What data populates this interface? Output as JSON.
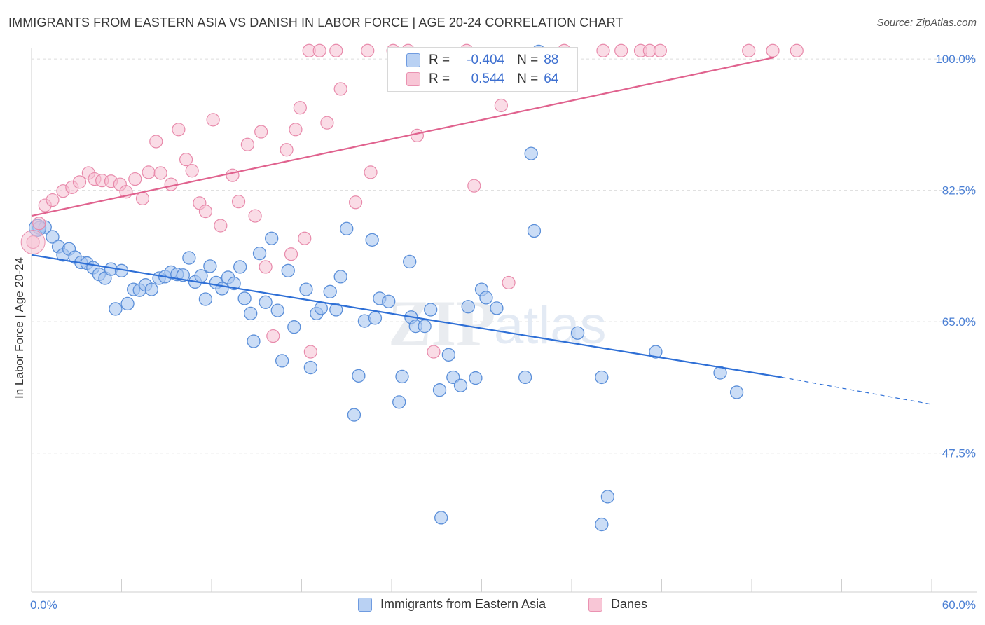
{
  "title": "IMMIGRANTS FROM EASTERN ASIA VS DANISH IN LABOR FORCE | AGE 20-24 CORRELATION CHART",
  "source": "Source: ZipAtlas.com",
  "watermark": {
    "zip": "ZIP",
    "atlas": "atlas"
  },
  "legend": {
    "rows": [
      {
        "r_label": "R =",
        "r_value": "-0.404",
        "n_label": "N =",
        "n_value": "88"
      },
      {
        "r_label": "R =",
        "r_value": "0.544",
        "n_label": "N =",
        "n_value": "64"
      }
    ]
  },
  "bottom_legend": {
    "series_a": "Immigrants from Eastern Asia",
    "series_b": "Danes"
  },
  "colors": {
    "blue_fill": "#a9c6f0",
    "blue_stroke": "#5b8fd9",
    "blue_line": "#2e6fd6",
    "pink_fill": "#f6bfd1",
    "pink_stroke": "#e88aab",
    "pink_line": "#e0628e",
    "tick_text": "#4a7fd4",
    "grid": "#dcdcdc"
  },
  "chart_data": {
    "type": "scatter",
    "title": "IMMIGRANTS FROM EASTERN ASIA VS DANISH IN LABOR FORCE | AGE 20-24 CORRELATION CHART",
    "xlabel": "",
    "ylabel": "In Labor Force | Age 20-24",
    "xlim": [
      0,
      60
    ],
    "ylim": [
      29,
      101.5
    ],
    "x_tick_labels": [
      "0.0%",
      "60.0%"
    ],
    "y_ticks": [
      47.5,
      65.0,
      82.5,
      100.0
    ],
    "y_tick_labels": [
      "47.5%",
      "65.0%",
      "82.5%",
      "100.0%"
    ],
    "grid": true,
    "legend_position": "top-center",
    "series": [
      {
        "name": "Immigrants from Eastern Asia",
        "r": -0.404,
        "n": 88,
        "trend": {
          "x0": 0,
          "y0": 73.9,
          "x1": 50,
          "y1": 57.6,
          "dash_to_x": 60,
          "dash_to_y": 54.0
        },
        "points": [
          [
            0.5,
            77.5
          ],
          [
            0.9,
            77.6
          ],
          [
            1.4,
            76.3
          ],
          [
            1.8,
            75.0
          ],
          [
            2.1,
            73.9
          ],
          [
            2.5,
            74.7
          ],
          [
            2.9,
            73.6
          ],
          [
            3.3,
            72.9
          ],
          [
            3.7,
            72.8
          ],
          [
            4.1,
            72.2
          ],
          [
            4.5,
            71.3
          ],
          [
            4.9,
            70.8
          ],
          [
            5.3,
            72.0
          ],
          [
            5.6,
            66.7
          ],
          [
            6.0,
            71.8
          ],
          [
            6.4,
            67.4
          ],
          [
            6.8,
            69.3
          ],
          [
            7.2,
            69.2
          ],
          [
            7.6,
            69.9
          ],
          [
            8.0,
            69.3
          ],
          [
            8.5,
            70.8
          ],
          [
            8.9,
            71.0
          ],
          [
            9.3,
            71.6
          ],
          [
            9.7,
            71.3
          ],
          [
            10.1,
            71.2
          ],
          [
            10.5,
            73.5
          ],
          [
            10.9,
            70.3
          ],
          [
            11.3,
            71.1
          ],
          [
            11.6,
            68.0
          ],
          [
            11.9,
            72.4
          ],
          [
            12.3,
            70.2
          ],
          [
            12.7,
            69.4
          ],
          [
            13.1,
            70.9
          ],
          [
            13.5,
            70.1
          ],
          [
            13.9,
            72.3
          ],
          [
            14.2,
            68.1
          ],
          [
            14.6,
            66.1
          ],
          [
            14.8,
            62.4
          ],
          [
            15.2,
            74.1
          ],
          [
            15.6,
            67.6
          ],
          [
            16.0,
            76.1
          ],
          [
            16.4,
            66.5
          ],
          [
            16.7,
            59.8
          ],
          [
            17.1,
            71.8
          ],
          [
            17.5,
            64.3
          ],
          [
            18.3,
            69.3
          ],
          [
            18.6,
            58.9
          ],
          [
            19.0,
            66.1
          ],
          [
            19.3,
            66.8
          ],
          [
            19.9,
            69.0
          ],
          [
            20.3,
            66.6
          ],
          [
            20.6,
            71.0
          ],
          [
            21.0,
            77.4
          ],
          [
            21.5,
            52.6
          ],
          [
            21.8,
            57.8
          ],
          [
            22.2,
            65.1
          ],
          [
            22.7,
            75.9
          ],
          [
            22.9,
            65.5
          ],
          [
            23.2,
            68.1
          ],
          [
            23.8,
            67.7
          ],
          [
            24.5,
            54.3
          ],
          [
            24.7,
            57.7
          ],
          [
            25.2,
            73.0
          ],
          [
            25.3,
            65.6
          ],
          [
            25.6,
            64.4
          ],
          [
            26.2,
            64.4
          ],
          [
            26.6,
            66.6
          ],
          [
            27.2,
            55.9
          ],
          [
            27.8,
            60.6
          ],
          [
            28.1,
            57.6
          ],
          [
            28.6,
            56.5
          ],
          [
            29.1,
            67.0
          ],
          [
            29.6,
            57.5
          ],
          [
            30.0,
            69.3
          ],
          [
            30.3,
            68.2
          ],
          [
            31.0,
            66.8
          ],
          [
            32.9,
            57.6
          ],
          [
            33.3,
            87.4
          ],
          [
            33.5,
            77.1
          ],
          [
            36.4,
            63.5
          ],
          [
            38.0,
            57.6
          ],
          [
            38.4,
            41.7
          ],
          [
            41.6,
            61.0
          ],
          [
            45.9,
            58.2
          ],
          [
            47.0,
            55.6
          ],
          [
            27.3,
            38.9
          ],
          [
            38.0,
            38.0
          ],
          [
            33.8,
            101.0
          ]
        ]
      },
      {
        "name": "Danes",
        "r": 0.544,
        "n": 64,
        "trend": {
          "x0": 0,
          "y0": 79.1,
          "x1": 49.5,
          "y1": 100.2
        },
        "points": [
          [
            0.1,
            75.6
          ],
          [
            0.5,
            78.1
          ],
          [
            0.9,
            80.5
          ],
          [
            1.4,
            81.2
          ],
          [
            2.1,
            82.4
          ],
          [
            2.7,
            82.9
          ],
          [
            3.2,
            83.6
          ],
          [
            3.8,
            84.8
          ],
          [
            4.2,
            84.0
          ],
          [
            4.7,
            83.8
          ],
          [
            5.3,
            83.7
          ],
          [
            5.9,
            83.3
          ],
          [
            6.3,
            82.3
          ],
          [
            6.9,
            84.0
          ],
          [
            7.4,
            81.4
          ],
          [
            7.8,
            84.9
          ],
          [
            8.3,
            89.0
          ],
          [
            8.6,
            84.8
          ],
          [
            9.3,
            83.3
          ],
          [
            9.8,
            90.6
          ],
          [
            10.3,
            86.6
          ],
          [
            10.7,
            85.1
          ],
          [
            11.2,
            80.8
          ],
          [
            11.6,
            79.7
          ],
          [
            12.1,
            91.9
          ],
          [
            12.6,
            77.8
          ],
          [
            13.4,
            84.5
          ],
          [
            13.8,
            81.0
          ],
          [
            14.4,
            88.6
          ],
          [
            14.9,
            79.1
          ],
          [
            15.3,
            90.3
          ],
          [
            15.6,
            72.3
          ],
          [
            16.1,
            63.1
          ],
          [
            17.0,
            87.9
          ],
          [
            17.3,
            74.0
          ],
          [
            17.6,
            90.6
          ],
          [
            17.9,
            93.5
          ],
          [
            18.2,
            76.1
          ],
          [
            18.5,
            101.1
          ],
          [
            18.6,
            61.0
          ],
          [
            19.2,
            101.1
          ],
          [
            19.7,
            91.5
          ],
          [
            20.3,
            101.1
          ],
          [
            20.6,
            96.0
          ],
          [
            21.6,
            80.9
          ],
          [
            22.4,
            101.1
          ],
          [
            22.6,
            84.9
          ],
          [
            24.1,
            101.1
          ],
          [
            25.1,
            101.1
          ],
          [
            25.7,
            89.8
          ],
          [
            26.8,
            61.0
          ],
          [
            29.0,
            101.1
          ],
          [
            29.5,
            83.1
          ],
          [
            31.3,
            93.8
          ],
          [
            31.8,
            70.2
          ],
          [
            35.5,
            101.1
          ],
          [
            38.1,
            101.1
          ],
          [
            39.3,
            101.1
          ],
          [
            40.6,
            101.1
          ],
          [
            41.2,
            101.1
          ],
          [
            41.9,
            101.1
          ],
          [
            47.8,
            101.1
          ],
          [
            49.4,
            101.1
          ],
          [
            51.0,
            101.1
          ]
        ]
      }
    ]
  }
}
